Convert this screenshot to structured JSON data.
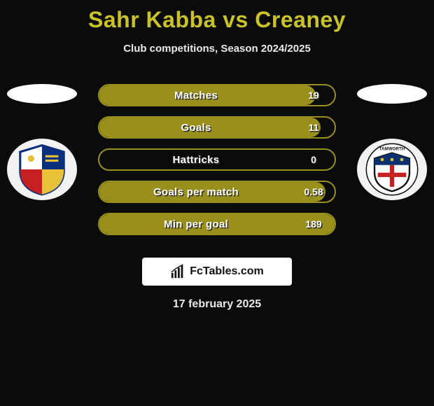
{
  "title": "Sahr Kabba vs Creaney",
  "subtitle": "Club competitions, Season 2024/2025",
  "date": "17 february 2025",
  "colors": {
    "title": "#c9c22a",
    "text": "#e9e9e9",
    "background": "#0b0b0b",
    "row_border": "#988f1c",
    "row_fill": "#988f1c",
    "shadow": "#2b2b2b",
    "white": "#ffffff"
  },
  "brand": {
    "text": "FcTables.com"
  },
  "stats": [
    {
      "label": "Matches",
      "value": "19",
      "fill_pct": 92
    },
    {
      "label": "Goals",
      "value": "11",
      "fill_pct": 94
    },
    {
      "label": "Hattricks",
      "value": "0",
      "fill_pct": 0
    },
    {
      "label": "Goals per match",
      "value": "0.58",
      "fill_pct": 96
    },
    {
      "label": "Min per goal",
      "value": "189",
      "fill_pct": 100
    }
  ],
  "left_club": {
    "name": "Wealdstone",
    "crest_bg": "#f2f2f2",
    "shield_colors": {
      "q1": "#ffffff",
      "q2": "#0a2f7e",
      "q3": "#c62020",
      "q4": "#e8c13a",
      "outline": "#0a2f7e"
    }
  },
  "right_club": {
    "name": "Tamworth",
    "crest_bg": "#f2f2f2",
    "shield_colors": {
      "top": "#0b326f",
      "body": "#ffffff",
      "cross": "#c62020",
      "outline": "#111111"
    },
    "ring_text": "TAMWORTH"
  }
}
